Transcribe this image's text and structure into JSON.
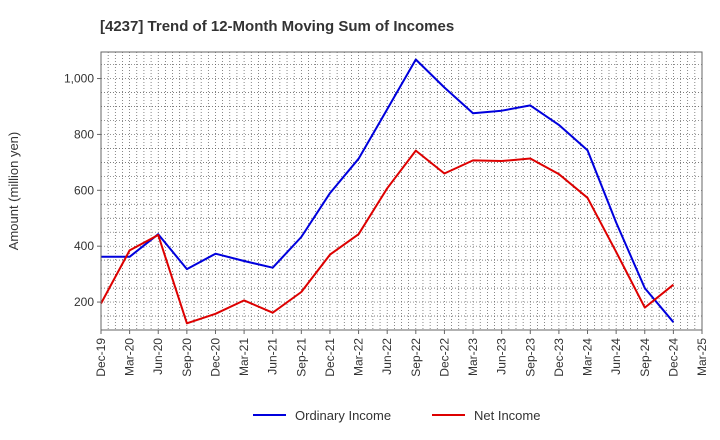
{
  "chart_data": {
    "type": "line",
    "title": "[4237]  Trend of 12-Month Moving Sum of Incomes",
    "xlabel": "",
    "ylabel": "Amount (million yen)",
    "ylim": [
      100,
      1095
    ],
    "yticks": [
      200,
      400,
      600,
      800,
      1000
    ],
    "ytick_labels": [
      "200",
      "400",
      "600",
      "800",
      "1,000"
    ],
    "grid": true,
    "legend_position": "bottom-center",
    "categories": [
      "Dec-19",
      "Mar-20",
      "Jun-20",
      "Sep-20",
      "Dec-20",
      "Mar-21",
      "Jun-21",
      "Sep-21",
      "Dec-21",
      "Mar-22",
      "Jun-22",
      "Sep-22",
      "Dec-22",
      "Mar-23",
      "Jun-23",
      "Sep-23",
      "Dec-23",
      "Mar-24",
      "Jun-24",
      "Sep-24",
      "Dec-24",
      "Mar-25"
    ],
    "series": [
      {
        "name": "Ordinary Income",
        "color": "#0000dd",
        "values": [
          362,
          362,
          443,
          318,
          373,
          347,
          323,
          433,
          590,
          713,
          890,
          1068,
          968,
          876,
          885,
          904,
          834,
          743,
          485,
          250,
          128,
          null
        ]
      },
      {
        "name": "Net Income",
        "color": "#dd0000",
        "values": [
          195,
          385,
          440,
          124,
          158,
          206,
          162,
          236,
          370,
          443,
          607,
          742,
          660,
          707,
          705,
          714,
          658,
          573,
          380,
          180,
          262,
          null
        ]
      }
    ]
  }
}
